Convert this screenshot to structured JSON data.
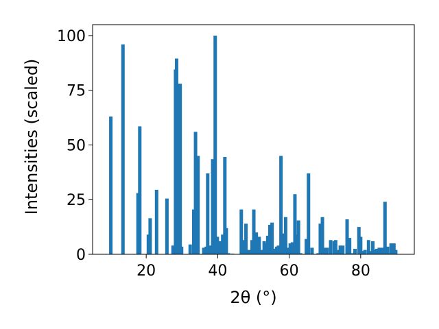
{
  "chart_data": {
    "type": "bar",
    "xlabel": "2θ (°)",
    "ylabel": "Intensities (scaled)",
    "xlim": [
      5,
      95
    ],
    "ylim": [
      0,
      105
    ],
    "xticks": [
      20,
      40,
      60,
      80
    ],
    "yticks": [
      0,
      25,
      50,
      75,
      100
    ],
    "grid": false,
    "color": "#1f77b4",
    "x": [
      10.1,
      13.5,
      17.7,
      18.2,
      20.6,
      21.1,
      22.9,
      25.8,
      27.5,
      28.2,
      28.5,
      29.0,
      29.5,
      29.9,
      32.3,
      33.3,
      33.8,
      34.5,
      36.1,
      36.8,
      37.2,
      37.8,
      38.6,
      39.3,
      39.9,
      40.6,
      41.4,
      42.0,
      42.4,
      43.0,
      44.1,
      46.6,
      47.4,
      47.9,
      48.7,
      49.6,
      50.1,
      50.8,
      51.6,
      52.3,
      53.0,
      53.5,
      54.0,
      54.6,
      55.2,
      55.8,
      56.5,
      57.0,
      57.7,
      58.3,
      59.0,
      59.7,
      60.3,
      60.9,
      61.6,
      62.1,
      62.6,
      63.2,
      64.8,
      65.4,
      66.4,
      68.1,
      68.7,
      69.3,
      69.9,
      70.6,
      71.6,
      72.6,
      73.0,
      73.6,
      74.3,
      75.0,
      76.2,
      76.9,
      77.6,
      78.4,
      79.5,
      80.0,
      80.6,
      81.2,
      82.2,
      82.8,
      83.4,
      84.0,
      84.5,
      85.2,
      86.0,
      86.8,
      87.5,
      88.0,
      88.5,
      89.3,
      89.8
    ],
    "values": [
      63,
      96,
      28,
      58.5,
      9,
      16.5,
      29.5,
      25.5,
      4,
      84.5,
      89.5,
      78,
      78,
      3.5,
      4.5,
      20.5,
      56,
      45,
      3,
      3.5,
      37,
      4,
      43.5,
      100,
      8,
      6,
      9,
      44.5,
      12,
      0.5,
      0.3,
      20.5,
      6.5,
      14,
      2,
      6.5,
      20.5,
      10,
      8,
      2,
      6,
      5,
      8.5,
      13.5,
      14.5,
      2.5,
      3.5,
      4,
      45,
      9.5,
      17,
      3,
      5,
      5.5,
      27.5,
      9,
      15.5,
      0.5,
      7,
      37,
      3,
      0.5,
      14,
      17,
      3,
      3,
      6.5,
      6,
      6.5,
      2,
      4,
      4,
      16,
      7.5,
      0.5,
      2.5,
      12.5,
      8,
      1.5,
      2,
      6.5,
      1.5,
      6,
      2,
      2.5,
      3,
      3,
      24,
      3.5,
      0.5,
      5,
      5,
      2
    ]
  }
}
